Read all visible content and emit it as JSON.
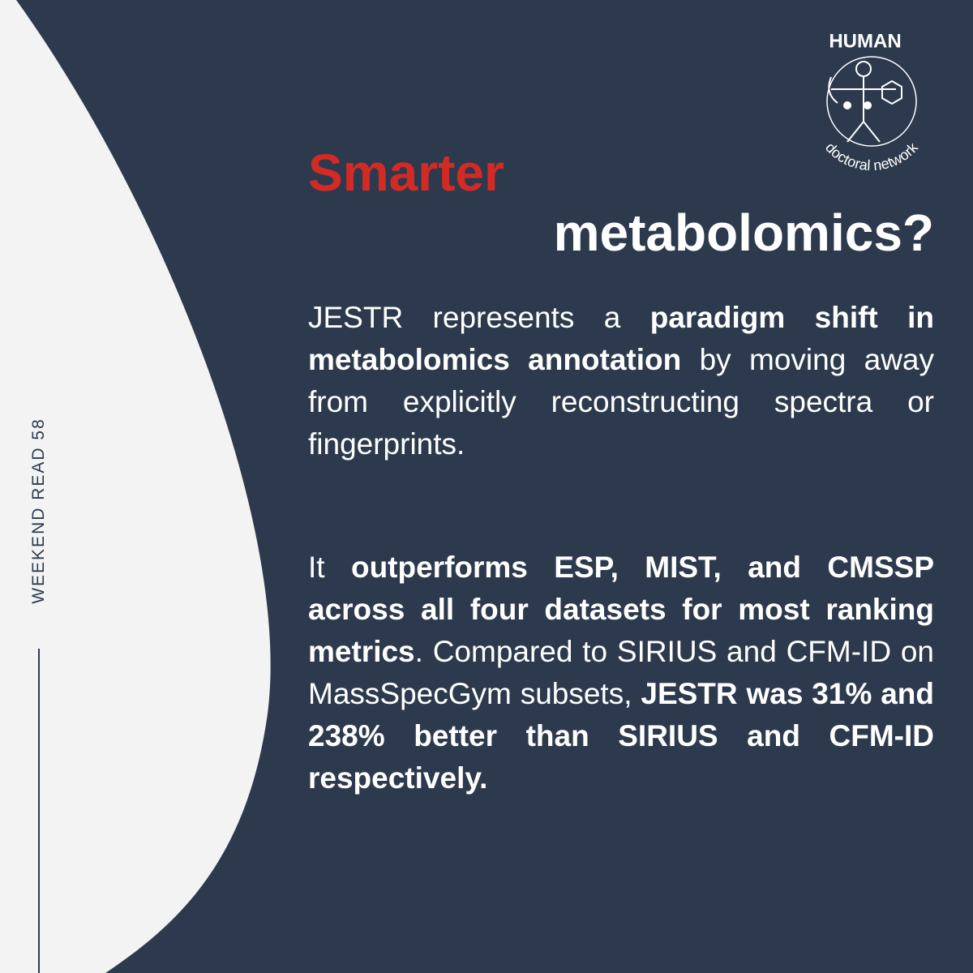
{
  "side_label": "WEEKEND READ 58",
  "logo": {
    "title": "HUMAN",
    "subtitle": "doctoral network"
  },
  "heading": {
    "line1": "Smarter",
    "line2": "metabolomics?"
  },
  "paragraphs": [
    [
      {
        "text": "JESTR represents a ",
        "bold": false
      },
      {
        "text": "paradigm shift in metabolomics annotation",
        "bold": true
      },
      {
        "text": " by moving away from explicitly reconstructing spectra or fingerprints.",
        "bold": false
      }
    ],
    [
      {
        "text": "It ",
        "bold": false
      },
      {
        "text": "outperforms ESP, MIST, and CMSSP across all four datasets for most ranking metrics",
        "bold": true
      },
      {
        "text": ". Compared to SIRIUS and CFM-ID on MassSpecGym subsets, ",
        "bold": false
      },
      {
        "text": "JESTR was 31% and 238% better than SIRIUS and CFM-ID respectively.",
        "bold": true
      }
    ]
  ]
}
